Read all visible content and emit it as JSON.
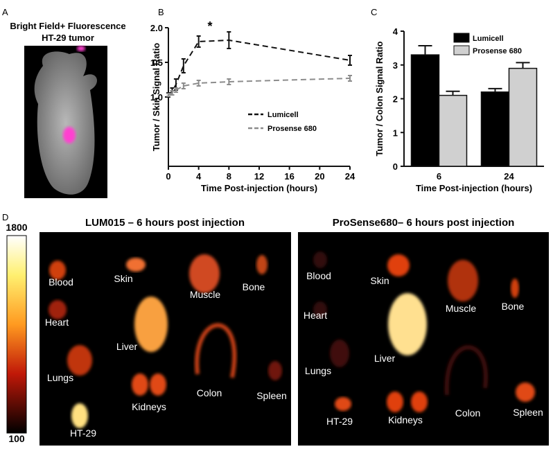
{
  "panel_labels": [
    "A",
    "B",
    "C",
    "D"
  ],
  "panel_a": {
    "title_lines": [
      "Bright Field+ Fluorescence",
      "HT-29 tumor"
    ]
  },
  "chart_data": [
    {
      "type": "line",
      "xlabel": "Time Post-injection (hours)",
      "ylabel": "Tumor / Skin Signal Ratio",
      "x": [
        0,
        0.5,
        1,
        2,
        4,
        8,
        24
      ],
      "series": [
        {
          "name": "Lumicell",
          "color": "#111111",
          "dash": "8,5",
          "values": [
            1.03,
            1.08,
            1.18,
            1.45,
            1.8,
            1.82,
            1.53
          ],
          "errors": [
            0.03,
            0.05,
            0.08,
            0.1,
            0.08,
            0.12,
            0.07
          ]
        },
        {
          "name": "Prosense 680",
          "color": "#8c8c8c",
          "dash": "8,5",
          "values": [
            1.03,
            1.06,
            1.1,
            1.16,
            1.2,
            1.22,
            1.27
          ],
          "errors": [
            0.02,
            0.03,
            0.03,
            0.04,
            0.04,
            0.04,
            0.04
          ]
        }
      ],
      "xlim": [
        0,
        24
      ],
      "xticks": [
        0,
        4,
        8,
        12,
        16,
        20,
        24
      ],
      "ylim": [
        0,
        2
      ],
      "yticks": [
        {
          "value": 1,
          "label": "1.0"
        },
        {
          "value": 1.5,
          "label": "1.5"
        },
        {
          "value": 2,
          "label": "2.0"
        }
      ],
      "annotations": [
        "*"
      ]
    },
    {
      "type": "bar",
      "xlabel": "Time Post-injection (hours)",
      "ylabel": "Tumor / Colon Signal Ratio",
      "categories": [
        "6",
        "24"
      ],
      "series": [
        {
          "name": "Lumicell",
          "color": "#000000",
          "values": [
            3.3,
            2.2
          ],
          "errors": [
            0.27,
            0.1
          ]
        },
        {
          "name": "Prosense 680",
          "color": "#d0d0d0",
          "values": [
            2.1,
            2.9
          ],
          "errors": [
            0.12,
            0.17
          ]
        }
      ],
      "ylim": [
        0,
        4
      ],
      "yticks": [
        0,
        1,
        2,
        3,
        4
      ]
    }
  ],
  "panel_d": {
    "colorbar_labels": [
      "1800",
      "100"
    ],
    "images": [
      {
        "title": "LUM015 – 6 hours post injection",
        "organs": [
          "Blood",
          "Heart",
          "Lungs",
          "HT-29",
          "Skin",
          "Liver",
          "Kidneys",
          "Muscle",
          "Colon",
          "Bone",
          "Spleen"
        ]
      },
      {
        "title": "ProSense680– 6 hours post injection",
        "organs": [
          "Blood",
          "Heart",
          "Lungs",
          "HT-29",
          "Skin",
          "Liver",
          "Kidneys",
          "Muscle",
          "Bone",
          "Colon",
          "Spleen"
        ]
      }
    ]
  }
}
